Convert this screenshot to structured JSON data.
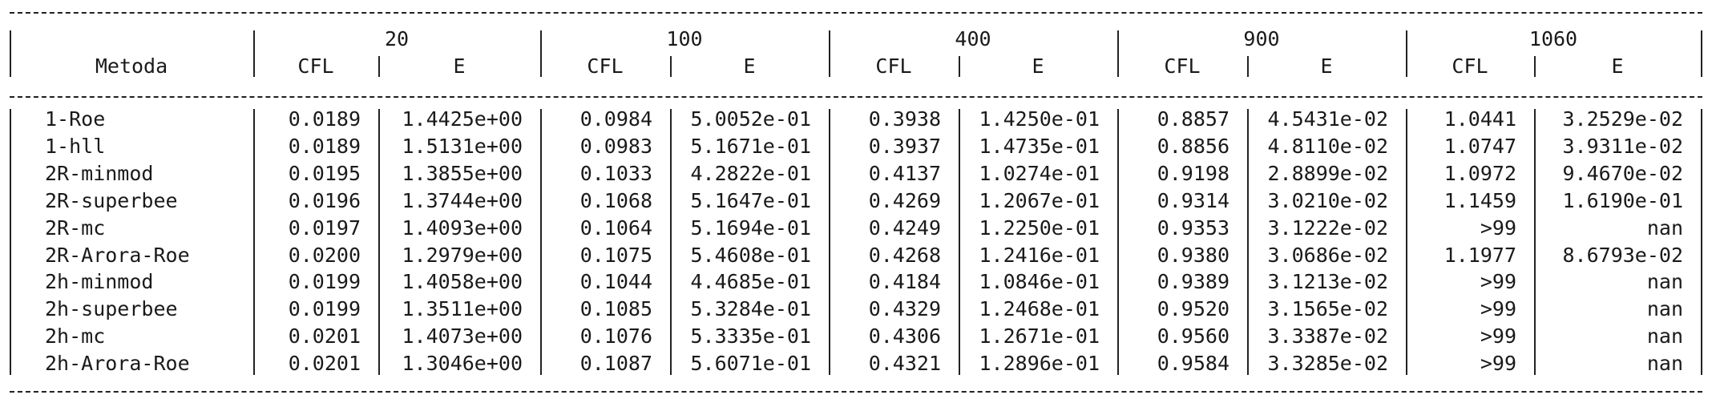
{
  "table": {
    "method_header": "Metoda",
    "groups": [
      {
        "label": "20"
      },
      {
        "label": "100"
      },
      {
        "label": "400"
      },
      {
        "label": "900"
      },
      {
        "label": "1060"
      }
    ],
    "cfl_header": "CFL",
    "e_header": "E",
    "rows": [
      {
        "method": "1-Roe",
        "cells": [
          [
            "0.0189",
            "1.4425e+00"
          ],
          [
            "0.0984",
            "5.0052e-01"
          ],
          [
            "0.3938",
            "1.4250e-01"
          ],
          [
            "0.8857",
            "4.5431e-02"
          ],
          [
            "1.0441",
            "3.2529e-02"
          ]
        ]
      },
      {
        "method": "1-hll",
        "cells": [
          [
            "0.0189",
            "1.5131e+00"
          ],
          [
            "0.0983",
            "5.1671e-01"
          ],
          [
            "0.3937",
            "1.4735e-01"
          ],
          [
            "0.8856",
            "4.8110e-02"
          ],
          [
            "1.0747",
            "3.9311e-02"
          ]
        ]
      },
      {
        "method": "2R-minmod",
        "cells": [
          [
            "0.0195",
            "1.3855e+00"
          ],
          [
            "0.1033",
            "4.2822e-01"
          ],
          [
            "0.4137",
            "1.0274e-01"
          ],
          [
            "0.9198",
            "2.8899e-02"
          ],
          [
            "1.0972",
            "9.4670e-02"
          ]
        ]
      },
      {
        "method": "2R-superbee",
        "cells": [
          [
            "0.0196",
            "1.3744e+00"
          ],
          [
            "0.1068",
            "5.1647e-01"
          ],
          [
            "0.4269",
            "1.2067e-01"
          ],
          [
            "0.9314",
            "3.0210e-02"
          ],
          [
            "1.1459",
            "1.6190e-01"
          ]
        ]
      },
      {
        "method": "2R-mc",
        "cells": [
          [
            "0.0197",
            "1.4093e+00"
          ],
          [
            "0.1064",
            "5.1694e-01"
          ],
          [
            "0.4249",
            "1.2250e-01"
          ],
          [
            "0.9353",
            "3.1222e-02"
          ],
          [
            ">99",
            "nan"
          ]
        ]
      },
      {
        "method": "2R-Arora-Roe",
        "cells": [
          [
            "0.0200",
            "1.2979e+00"
          ],
          [
            "0.1075",
            "5.4608e-01"
          ],
          [
            "0.4268",
            "1.2416e-01"
          ],
          [
            "0.9380",
            "3.0686e-02"
          ],
          [
            "1.1977",
            "8.6793e-02"
          ]
        ]
      },
      {
        "method": "2h-minmod",
        "cells": [
          [
            "0.0199",
            "1.4058e+00"
          ],
          [
            "0.1044",
            "4.4685e-01"
          ],
          [
            "0.4184",
            "1.0846e-01"
          ],
          [
            "0.9389",
            "3.1213e-02"
          ],
          [
            ">99",
            "nan"
          ]
        ]
      },
      {
        "method": "2h-superbee",
        "cells": [
          [
            "0.0199",
            "1.3511e+00"
          ],
          [
            "0.1085",
            "5.3284e-01"
          ],
          [
            "0.4329",
            "1.2468e-01"
          ],
          [
            "0.9520",
            "3.1565e-02"
          ],
          [
            ">99",
            "nan"
          ]
        ]
      },
      {
        "method": "2h-mc",
        "cells": [
          [
            "0.0201",
            "1.4073e+00"
          ],
          [
            "0.1076",
            "5.3335e-01"
          ],
          [
            "0.4306",
            "1.2671e-01"
          ],
          [
            "0.9560",
            "3.3387e-02"
          ],
          [
            ">99",
            "nan"
          ]
        ]
      },
      {
        "method": "2h-Arora-Roe",
        "cells": [
          [
            "0.0201",
            "1.3046e+00"
          ],
          [
            "0.1087",
            "5.6071e-01"
          ],
          [
            "0.4321",
            "1.2896e-01"
          ],
          [
            "0.9584",
            "3.3285e-02"
          ],
          [
            ">99",
            "nan"
          ]
        ]
      }
    ]
  }
}
